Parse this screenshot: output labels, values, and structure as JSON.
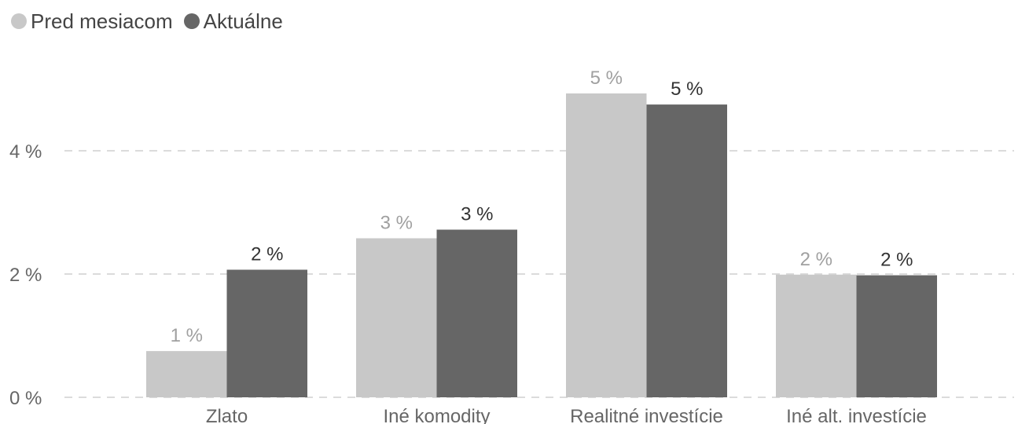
{
  "chart_data": {
    "type": "bar",
    "categories": [
      "Zlato",
      "Iné komodity",
      "Realitné investície",
      "Iné alt. investície"
    ],
    "series": [
      {
        "name": "Pred mesiacom",
        "values": [
          0.75,
          2.58,
          4.93,
          1.99
        ],
        "labels": [
          "1 %",
          "3 %",
          "5 %",
          "2 %"
        ],
        "color": "#c8c8c8",
        "label_color": "#a0a0a0"
      },
      {
        "name": "Aktuálne",
        "values": [
          2.07,
          2.72,
          4.75,
          1.98
        ],
        "labels": [
          "2 %",
          "3 %",
          "5 %",
          "2 %"
        ],
        "color": "#666666",
        "label_color": "#333333"
      }
    ],
    "y_ticks": [
      {
        "value": 0,
        "label": "0 %"
      },
      {
        "value": 2,
        "label": "2 %"
      },
      {
        "value": 4,
        "label": "4 %"
      }
    ],
    "ylim": [
      0,
      5.4
    ],
    "grid": true,
    "legend_position": "top-left"
  }
}
